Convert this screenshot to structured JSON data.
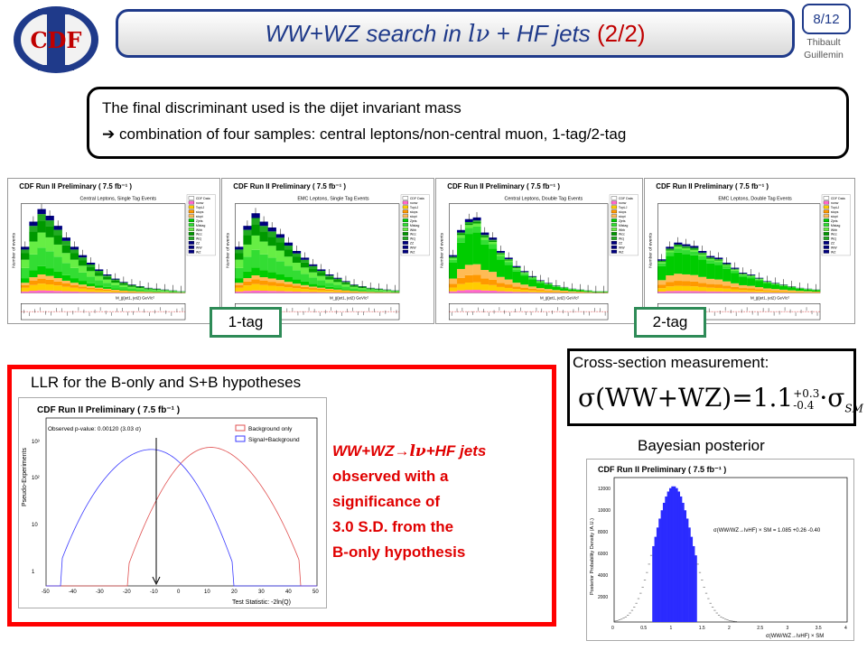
{
  "header": {
    "logo_text": "CDF",
    "title_main": "WW+WZ search in ",
    "title_lnu": "lν",
    "title_rest": " + HF jets ",
    "title_part": "(2/2)",
    "page": "8/12",
    "author_line1": "Thibault",
    "author_line2": "Guillemin"
  },
  "intro": {
    "line1": "The final discriminant used is the dijet invariant mass",
    "arrow": "➔",
    "line2": "combination of four samples: central leptons/non-central muon, 1-tag/2-tag"
  },
  "plots": [
    {
      "header": "CDF Run II Preliminary ( 7.5 fb⁻¹ )",
      "subtitle": "Central Leptons, Single Tag Events"
    },
    {
      "header": "CDF Run II Preliminary ( 7.5 fb⁻¹ )",
      "subtitle": "EMC Leptons, Single Tag Events"
    },
    {
      "header": "CDF Run II Preliminary ( 7.5 fb⁻¹ )",
      "subtitle": "Central Leptons, Double Tag Events"
    },
    {
      "header": "CDF Run II Preliminary ( 7.5 fb⁻¹ )",
      "subtitle": "EMC Leptons, Double Tag Events"
    }
  ],
  "legend": [
    "CDF Data",
    "nonw",
    "TopLJ",
    "stops",
    "stopt",
    "Zjets",
    "Mistag",
    "Wbb",
    "Wcc",
    "Wcj",
    "ZZ",
    "WW",
    "WZ"
  ],
  "x_axis_label": "M_jj(jet1, jet2)  GeV/c²",
  "y_axis_label": "Number of events",
  "tags": {
    "one": "1-tag",
    "two": "2-tag"
  },
  "llr": {
    "title": "LLR for the B-only and S+B hypotheses",
    "plot_header": "CDF Run II Preliminary ( 7.5 fb⁻¹ )",
    "pvalue": "Observed p-value: 0.00120 (3.03 σ)",
    "legend_bg": "Background only",
    "legend_sb": "Signal+Background",
    "ylabel": "Pseudo-Experiments",
    "xlabel": "Test Statistic: -2ln(Q)",
    "yticks": [
      "10³",
      "10²",
      "10",
      "1"
    ],
    "xticks": [
      "-50",
      "-40",
      "-30",
      "-20",
      "-10",
      "0",
      "10",
      "20",
      "30",
      "40",
      "50"
    ]
  },
  "finding": {
    "line1a": "WW+WZ→",
    "line1b": "lν",
    "line1c": "+HF jets",
    "line2": "observed with a",
    "line3": "significance of",
    "line4": "3.0 S.D. from the",
    "line5": "B-only hypothesis"
  },
  "xsec": {
    "title": "Cross-section measurement:",
    "lhs": "σ(WW+WZ)=1.1",
    "sup": "+0.3",
    "sub": "-0.4",
    "rhs": "·σ",
    "rhs_sub": "SM"
  },
  "bayes": {
    "title": "Bayesian posterior",
    "plot_header": "CDF Run II Preliminary ( 7.5 fb⁻¹ )",
    "ylabel": "Posterior Probability Density (A.U.)",
    "xlabel": "σ(WW/WZ→lνHF) × SM",
    "result": "σ(WW/WZ→lνHF) × SM = 1.085 +0.26 -0.40",
    "yticks": [
      "12000",
      "10000",
      "8000",
      "6000",
      "4000",
      "2000"
    ],
    "xticks": [
      "0",
      "0.5",
      "1",
      "1.5",
      "2",
      "2.5",
      "3",
      "3.5",
      "4"
    ]
  },
  "colors": {
    "title_blue": "#1f3a8a",
    "red": "#e00000",
    "green_tag": "#2e8b57",
    "hist_blue": "#2b2bff"
  }
}
